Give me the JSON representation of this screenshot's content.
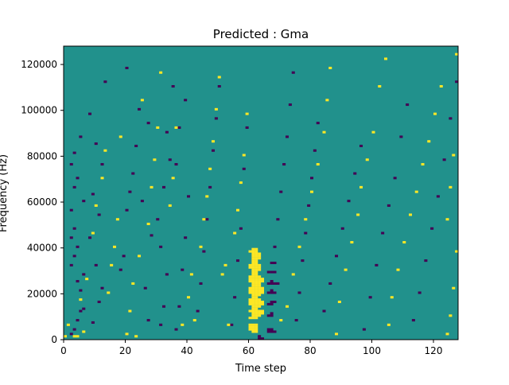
{
  "chart_data": {
    "type": "heatmap",
    "title": "Predicted : Gma",
    "xlabel": "Time step",
    "ylabel": "Frequency (Hz)",
    "xlim": [
      0,
      128
    ],
    "ylim": [
      0,
      128000
    ],
    "x_ticks": [
      0,
      20,
      40,
      60,
      80,
      100,
      120
    ],
    "y_ticks": [
      0,
      20000,
      40000,
      60000,
      80000,
      100000,
      120000
    ],
    "y_tick_labels": [
      "0",
      "20000",
      "40000",
      "60000",
      "80000",
      "100000",
      "120000"
    ],
    "n_time_steps": 128,
    "n_frequency_bins": 128,
    "value_levels": [
      -1,
      0,
      1
    ],
    "colormap": {
      "-1": "#440154",
      "0": "#21918c",
      "1": "#fde725"
    },
    "background_value": 0,
    "sparse_cells": [
      [
        60,
        4,
        1
      ],
      [
        60,
        5,
        1
      ],
      [
        60,
        6,
        1
      ],
      [
        61,
        3,
        1
      ],
      [
        61,
        4,
        1
      ],
      [
        61,
        5,
        1
      ],
      [
        61,
        6,
        1
      ],
      [
        62,
        3,
        1
      ],
      [
        62,
        4,
        1
      ],
      [
        62,
        5,
        1
      ],
      [
        62,
        6,
        1
      ],
      [
        60,
        9,
        1
      ],
      [
        60,
        12,
        1
      ],
      [
        61,
        9,
        1
      ],
      [
        61,
        10,
        1
      ],
      [
        61,
        11,
        1
      ],
      [
        61,
        12,
        1
      ],
      [
        61,
        13,
        1
      ],
      [
        62,
        9,
        1
      ],
      [
        62,
        10,
        1
      ],
      [
        62,
        11,
        1
      ],
      [
        62,
        12,
        1
      ],
      [
        62,
        13,
        1
      ],
      [
        63,
        10,
        1
      ],
      [
        63,
        11,
        1
      ],
      [
        63,
        12,
        1
      ],
      [
        64,
        11,
        1
      ],
      [
        64,
        12,
        1
      ],
      [
        60,
        15,
        1
      ],
      [
        60,
        16,
        1
      ],
      [
        60,
        17,
        1
      ],
      [
        61,
        14,
        1
      ],
      [
        61,
        15,
        1
      ],
      [
        61,
        16,
        1
      ],
      [
        61,
        17,
        1
      ],
      [
        61,
        18,
        1
      ],
      [
        62,
        14,
        1
      ],
      [
        62,
        15,
        1
      ],
      [
        62,
        16,
        1
      ],
      [
        62,
        17,
        1
      ],
      [
        62,
        18,
        1
      ],
      [
        63,
        14,
        1
      ],
      [
        63,
        15,
        1
      ],
      [
        63,
        16,
        1
      ],
      [
        63,
        17,
        1
      ],
      [
        64,
        15,
        1
      ],
      [
        64,
        16,
        1
      ],
      [
        60,
        20,
        1
      ],
      [
        60,
        21,
        1
      ],
      [
        60,
        22,
        1
      ],
      [
        61,
        19,
        1
      ],
      [
        61,
        20,
        1
      ],
      [
        61,
        21,
        1
      ],
      [
        61,
        22,
        1
      ],
      [
        61,
        23,
        1
      ],
      [
        62,
        19,
        1
      ],
      [
        62,
        20,
        1
      ],
      [
        62,
        21,
        1
      ],
      [
        62,
        22,
        1
      ],
      [
        62,
        23,
        1
      ],
      [
        63,
        19,
        1
      ],
      [
        63,
        20,
        1
      ],
      [
        63,
        21,
        1
      ],
      [
        63,
        22,
        1
      ],
      [
        63,
        23,
        1
      ],
      [
        64,
        20,
        1
      ],
      [
        64,
        21,
        1
      ],
      [
        64,
        22,
        1
      ],
      [
        60,
        25,
        1
      ],
      [
        60,
        26,
        1
      ],
      [
        60,
        27,
        1
      ],
      [
        61,
        24,
        1
      ],
      [
        61,
        25,
        1
      ],
      [
        61,
        26,
        1
      ],
      [
        61,
        27,
        1
      ],
      [
        61,
        28,
        1
      ],
      [
        62,
        24,
        1
      ],
      [
        62,
        25,
        1
      ],
      [
        62,
        26,
        1
      ],
      [
        62,
        27,
        1
      ],
      [
        62,
        28,
        1
      ],
      [
        63,
        24,
        1
      ],
      [
        63,
        25,
        1
      ],
      [
        63,
        26,
        1
      ],
      [
        63,
        27,
        1
      ],
      [
        64,
        25,
        1
      ],
      [
        64,
        26,
        1
      ],
      [
        60,
        31,
        1
      ],
      [
        60,
        32,
        1
      ],
      [
        61,
        29,
        1
      ],
      [
        61,
        30,
        1
      ],
      [
        61,
        31,
        1
      ],
      [
        61,
        32,
        1
      ],
      [
        61,
        33,
        1
      ],
      [
        62,
        29,
        1
      ],
      [
        62,
        30,
        1
      ],
      [
        62,
        31,
        1
      ],
      [
        62,
        32,
        1
      ],
      [
        62,
        33,
        1
      ],
      [
        63,
        30,
        1
      ],
      [
        63,
        31,
        1
      ],
      [
        63,
        32,
        1
      ],
      [
        60,
        38,
        1
      ],
      [
        61,
        34,
        1
      ],
      [
        61,
        35,
        1
      ],
      [
        61,
        36,
        1
      ],
      [
        61,
        37,
        1
      ],
      [
        61,
        38,
        1
      ],
      [
        61,
        39,
        1
      ],
      [
        62,
        34,
        1
      ],
      [
        62,
        35,
        1
      ],
      [
        62,
        36,
        1
      ],
      [
        62,
        37,
        1
      ],
      [
        62,
        38,
        1
      ],
      [
        62,
        39,
        1
      ],
      [
        63,
        35,
        1
      ],
      [
        63,
        36,
        1
      ],
      [
        63,
        37,
        1
      ],
      [
        63,
        0,
        -1
      ],
      [
        63,
        1,
        -1
      ],
      [
        64,
        0,
        -1
      ],
      [
        66,
        3,
        -1
      ],
      [
        66,
        4,
        -1
      ],
      [
        67,
        3,
        -1
      ],
      [
        67,
        4,
        -1
      ],
      [
        68,
        3,
        -1
      ],
      [
        66,
        10,
        -1
      ],
      [
        67,
        10,
        -1
      ],
      [
        67,
        11,
        -1
      ],
      [
        66,
        15,
        -1
      ],
      [
        67,
        15,
        -1
      ],
      [
        67,
        16,
        -1
      ],
      [
        68,
        16,
        -1
      ],
      [
        66,
        20,
        -1
      ],
      [
        67,
        20,
        -1
      ],
      [
        67,
        21,
        -1
      ],
      [
        68,
        20,
        -1
      ],
      [
        66,
        24,
        -1
      ],
      [
        67,
        24,
        -1
      ],
      [
        67,
        25,
        -1
      ],
      [
        68,
        24,
        -1
      ],
      [
        69,
        24,
        -1
      ],
      [
        66,
        29,
        -1
      ],
      [
        67,
        29,
        -1
      ],
      [
        68,
        29,
        -1
      ],
      [
        67,
        33,
        -1
      ],
      [
        68,
        33,
        -1
      ],
      [
        2,
        2,
        -1
      ],
      [
        3,
        4,
        -1
      ],
      [
        4,
        8,
        -1
      ],
      [
        5,
        12,
        -1
      ],
      [
        6,
        13,
        -1
      ],
      [
        5,
        21,
        -1
      ],
      [
        4,
        25,
        -1
      ],
      [
        6,
        28,
        -1
      ],
      [
        2,
        32,
        -1
      ],
      [
        3,
        36,
        -1
      ],
      [
        4,
        40,
        -1
      ],
      [
        2,
        44,
        -1
      ],
      [
        3,
        48,
        -1
      ],
      [
        2,
        56,
        -1
      ],
      [
        6,
        60,
        -1
      ],
      [
        3,
        66,
        -1
      ],
      [
        4,
        70,
        -1
      ],
      [
        2,
        76,
        -1
      ],
      [
        3,
        81,
        -1
      ],
      [
        5,
        88,
        -1
      ],
      [
        9,
        7,
        -1
      ],
      [
        11,
        16,
        -1
      ],
      [
        12,
        22,
        -1
      ],
      [
        10,
        32,
        -1
      ],
      [
        8,
        44,
        -1
      ],
      [
        11,
        54,
        -1
      ],
      [
        9,
        63,
        -1
      ],
      [
        12,
        76,
        -1
      ],
      [
        10,
        85,
        -1
      ],
      [
        8,
        98,
        -1
      ],
      [
        13,
        112,
        -1
      ],
      [
        18,
        30,
        -1
      ],
      [
        19,
        36,
        -1
      ],
      [
        20,
        56,
        -1
      ],
      [
        21,
        64,
        -1
      ],
      [
        22,
        72,
        -1
      ],
      [
        23,
        84,
        -1
      ],
      [
        24,
        100,
        -1
      ],
      [
        20,
        118,
        -1
      ],
      [
        27,
        8,
        -1
      ],
      [
        26,
        22,
        -1
      ],
      [
        28,
        45,
        -1
      ],
      [
        25,
        60,
        -1
      ],
      [
        27,
        94,
        -1
      ],
      [
        31,
        6,
        -1
      ],
      [
        32,
        14,
        -1
      ],
      [
        33,
        28,
        -1
      ],
      [
        31,
        40,
        -1
      ],
      [
        30,
        52,
        -1
      ],
      [
        32,
        66,
        -1
      ],
      [
        34,
        78,
        -1
      ],
      [
        33,
        90,
        -1
      ],
      [
        35,
        110,
        -1
      ],
      [
        36,
        4,
        -1
      ],
      [
        37,
        14,
        -1
      ],
      [
        38,
        30,
        -1
      ],
      [
        39,
        44,
        -1
      ],
      [
        40,
        62,
        -1
      ],
      [
        36,
        76,
        -1
      ],
      [
        37,
        92,
        -1
      ],
      [
        39,
        104,
        -1
      ],
      [
        43,
        12,
        -1
      ],
      [
        44,
        24,
        -1
      ],
      [
        45,
        38,
        -1
      ],
      [
        46,
        52,
        -1
      ],
      [
        47,
        66,
        -1
      ],
      [
        48,
        82,
        -1
      ],
      [
        49,
        96,
        -1
      ],
      [
        50,
        110,
        -1
      ],
      [
        54,
        6,
        -1
      ],
      [
        55,
        18,
        -1
      ],
      [
        56,
        34,
        -1
      ],
      [
        57,
        48,
        -1
      ],
      [
        58,
        74,
        -1
      ],
      [
        59,
        92,
        -1
      ],
      [
        68,
        40,
        -1
      ],
      [
        69,
        52,
        -1
      ],
      [
        70,
        64,
        -1
      ],
      [
        71,
        76,
        -1
      ],
      [
        72,
        88,
        -1
      ],
      [
        73,
        102,
        -1
      ],
      [
        74,
        116,
        -1
      ],
      [
        75,
        8,
        -1
      ],
      [
        76,
        20,
        -1
      ],
      [
        77,
        34,
        -1
      ],
      [
        78,
        46,
        -1
      ],
      [
        79,
        58,
        -1
      ],
      [
        80,
        70,
        -1
      ],
      [
        81,
        82,
        -1
      ],
      [
        82,
        94,
        -1
      ],
      [
        84,
        12,
        -1
      ],
      [
        86,
        24,
        -1
      ],
      [
        88,
        36,
        -1
      ],
      [
        90,
        48,
        -1
      ],
      [
        92,
        60,
        -1
      ],
      [
        94,
        72,
        -1
      ],
      [
        96,
        84,
        -1
      ],
      [
        97,
        4,
        -1
      ],
      [
        99,
        18,
        -1
      ],
      [
        101,
        32,
        -1
      ],
      [
        103,
        46,
        -1
      ],
      [
        105,
        58,
        -1
      ],
      [
        107,
        70,
        -1
      ],
      [
        109,
        88,
        -1
      ],
      [
        111,
        102,
        -1
      ],
      [
        113,
        8,
        -1
      ],
      [
        115,
        20,
        -1
      ],
      [
        117,
        34,
        -1
      ],
      [
        119,
        48,
        -1
      ],
      [
        121,
        62,
        -1
      ],
      [
        123,
        78,
        -1
      ],
      [
        125,
        96,
        -1
      ],
      [
        127,
        112,
        -1
      ],
      [
        0,
        1,
        1
      ],
      [
        1,
        6,
        1
      ],
      [
        3,
        1,
        1
      ],
      [
        4,
        1,
        1
      ],
      [
        5,
        17,
        1
      ],
      [
        6,
        3,
        1
      ],
      [
        7,
        26,
        1
      ],
      [
        9,
        46,
        1
      ],
      [
        10,
        58,
        1
      ],
      [
        12,
        70,
        1
      ],
      [
        13,
        82,
        1
      ],
      [
        14,
        20,
        1
      ],
      [
        15,
        32,
        1
      ],
      [
        16,
        40,
        1
      ],
      [
        17,
        52,
        1
      ],
      [
        18,
        88,
        1
      ],
      [
        20,
        2,
        1
      ],
      [
        21,
        12,
        1
      ],
      [
        22,
        24,
        1
      ],
      [
        23,
        1,
        1
      ],
      [
        24,
        36,
        1
      ],
      [
        25,
        104,
        1
      ],
      [
        27,
        50,
        1
      ],
      [
        28,
        66,
        1
      ],
      [
        29,
        78,
        1
      ],
      [
        30,
        92,
        1
      ],
      [
        31,
        116,
        1
      ],
      [
        34,
        58,
        1
      ],
      [
        35,
        70,
        1
      ],
      [
        36,
        92,
        1
      ],
      [
        38,
        6,
        1
      ],
      [
        40,
        18,
        1
      ],
      [
        41,
        28,
        1
      ],
      [
        42,
        8,
        1
      ],
      [
        44,
        40,
        1
      ],
      [
        45,
        52,
        1
      ],
      [
        46,
        62,
        1
      ],
      [
        47,
        74,
        1
      ],
      [
        48,
        86,
        1
      ],
      [
        49,
        100,
        1
      ],
      [
        50,
        114,
        1
      ],
      [
        51,
        28,
        1
      ],
      [
        52,
        32,
        1
      ],
      [
        53,
        6,
        1
      ],
      [
        55,
        46,
        1
      ],
      [
        56,
        56,
        1
      ],
      [
        57,
        68,
        1
      ],
      [
        58,
        80,
        1
      ],
      [
        59,
        98,
        1
      ],
      [
        70,
        8,
        1
      ],
      [
        72,
        14,
        1
      ],
      [
        74,
        28,
        1
      ],
      [
        76,
        40,
        1
      ],
      [
        78,
        52,
        1
      ],
      [
        80,
        64,
        1
      ],
      [
        82,
        76,
        1
      ],
      [
        84,
        90,
        1
      ],
      [
        85,
        104,
        1
      ],
      [
        86,
        118,
        1
      ],
      [
        88,
        2,
        1
      ],
      [
        89,
        16,
        1
      ],
      [
        91,
        30,
        1
      ],
      [
        93,
        42,
        1
      ],
      [
        95,
        54,
        1
      ],
      [
        96,
        66,
        1
      ],
      [
        98,
        78,
        1
      ],
      [
        100,
        90,
        1
      ],
      [
        102,
        110,
        1
      ],
      [
        104,
        122,
        1
      ],
      [
        105,
        6,
        1
      ],
      [
        106,
        18,
        1
      ],
      [
        108,
        30,
        1
      ],
      [
        110,
        42,
        1
      ],
      [
        112,
        54,
        1
      ],
      [
        114,
        64,
        1
      ],
      [
        116,
        76,
        1
      ],
      [
        118,
        86,
        1
      ],
      [
        120,
        98,
        1
      ],
      [
        122,
        110,
        1
      ],
      [
        124,
        2,
        1
      ],
      [
        125,
        10,
        1
      ],
      [
        126,
        22,
        1
      ],
      [
        127,
        38,
        1
      ],
      [
        124,
        52,
        1
      ],
      [
        125,
        66,
        1
      ],
      [
        126,
        80,
        1
      ],
      [
        127,
        124,
        1
      ]
    ]
  }
}
